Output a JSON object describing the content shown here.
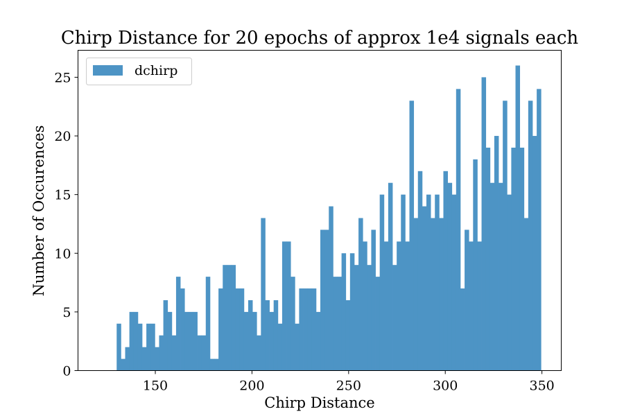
{
  "chart_data": {
    "type": "bar",
    "title": "Chirp Distance for 20 epochs of approx 1e4 signals each",
    "xlabel": "Chirp Distance",
    "ylabel": "Number of Occurences",
    "xlim": [
      110,
      360
    ],
    "ylim": [
      0,
      27.3
    ],
    "xticks": [
      150,
      200,
      250,
      300,
      350
    ],
    "yticks": [
      0,
      5,
      10,
      15,
      20,
      25
    ],
    "legend": "top-left",
    "grid": false,
    "bar_color": "#4d94c5",
    "bin_start": 130,
    "bin_end": 349.5,
    "series": [
      {
        "name": "dchirp",
        "values": [
          4,
          1,
          2,
          5,
          5,
          4,
          2,
          4,
          4,
          2,
          3,
          6,
          5,
          3,
          8,
          7,
          5,
          5,
          5,
          3,
          3,
          8,
          1,
          1,
          7,
          9,
          9,
          9,
          7,
          7,
          5,
          6,
          5,
          3,
          13,
          6,
          5,
          6,
          4,
          11,
          11,
          8,
          4,
          7,
          7,
          7,
          7,
          5,
          12,
          12,
          14,
          8,
          8,
          10,
          6,
          10,
          9,
          13,
          11,
          9,
          12,
          8,
          15,
          11,
          16,
          9,
          11,
          15,
          11,
          23,
          13,
          17,
          14,
          15,
          13,
          15,
          13,
          17,
          16,
          15,
          24,
          7,
          12,
          11,
          18,
          11,
          25,
          19,
          16,
          20,
          16,
          23,
          15,
          19,
          26,
          19,
          13,
          23,
          20,
          24
        ]
      }
    ]
  }
}
